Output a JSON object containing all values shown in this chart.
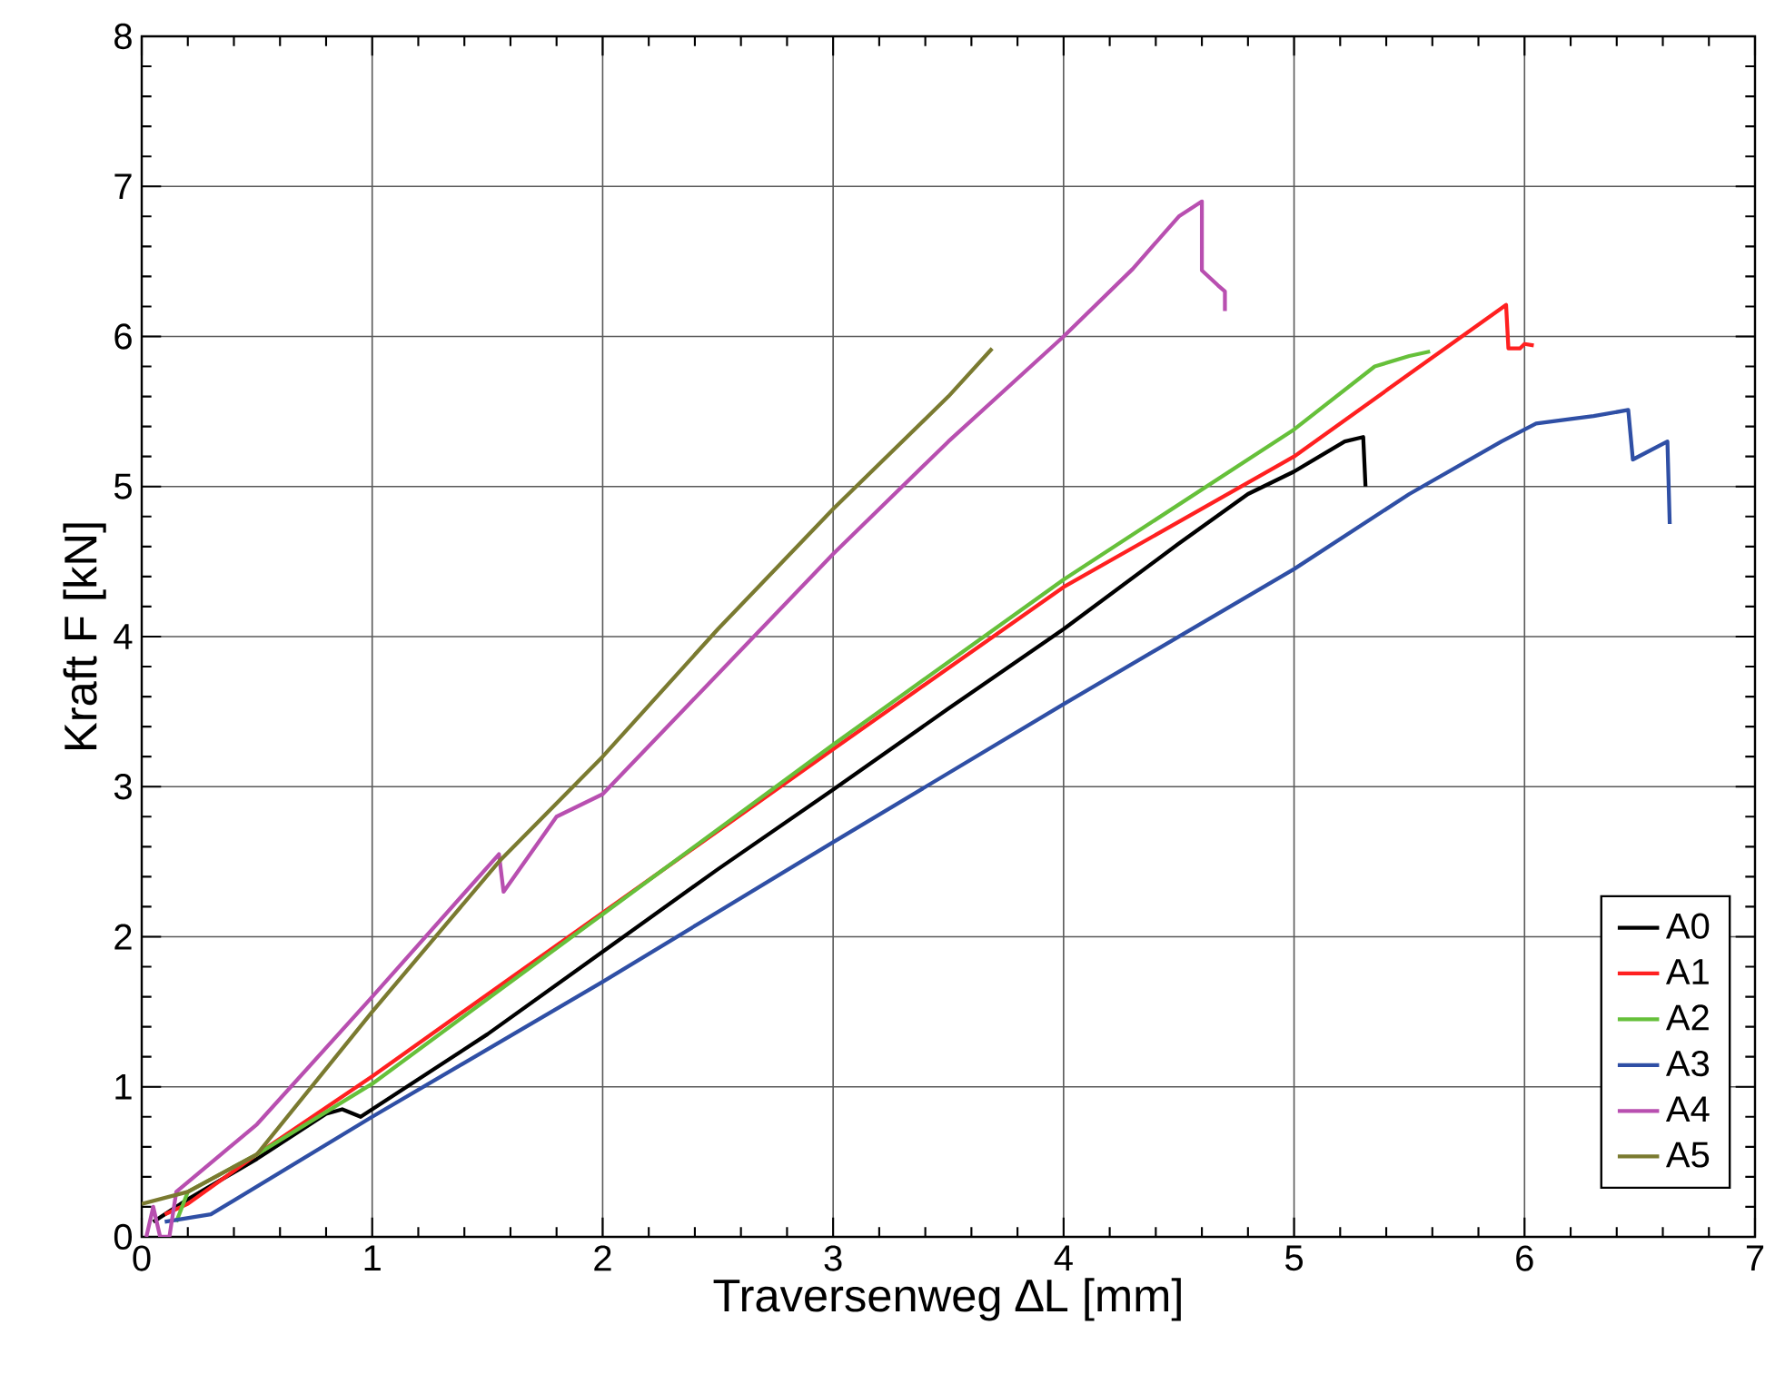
{
  "chart_data": {
    "type": "line",
    "xlabel": "Traversenweg ∆L [mm]",
    "ylabel": "Kraft F [kN]",
    "xlim": [
      0,
      7
    ],
    "ylim": [
      0,
      8
    ],
    "xticks": [
      0,
      1,
      2,
      3,
      4,
      5,
      6,
      7
    ],
    "yticks": [
      0,
      1,
      2,
      3,
      4,
      5,
      6,
      7,
      8
    ],
    "grid": true,
    "legend": "bottom right",
    "line_style": "solid",
    "marker": "none",
    "series": [
      {
        "name": "A0",
        "color": "#000000",
        "x": [
          0.05,
          0.2,
          0.5,
          0.8,
          0.87,
          0.95,
          1.0,
          1.5,
          2,
          2.5,
          3,
          3.5,
          4,
          4.5,
          4.8,
          5.0,
          5.22,
          5.3,
          5.31
        ],
        "values": [
          0.1,
          0.25,
          0.52,
          0.82,
          0.85,
          0.8,
          0.85,
          1.35,
          1.9,
          2.45,
          2.98,
          3.52,
          4.05,
          4.62,
          4.95,
          5.1,
          5.3,
          5.33,
          5.0
        ]
      },
      {
        "name": "A1",
        "color": "#ff2020",
        "x": [
          0.1,
          0.2,
          0.5,
          1,
          3,
          4,
          5,
          5.5,
          5.92,
          5.93,
          5.98,
          6.0,
          6.04
        ],
        "values": [
          0.15,
          0.22,
          0.55,
          1.07,
          3.25,
          4.33,
          5.2,
          5.75,
          6.21,
          5.92,
          5.92,
          5.95,
          5.94
        ]
      },
      {
        "name": "A2",
        "color": "#66c03a",
        "x": [
          0.15,
          0.2,
          0.5,
          1,
          2,
          3,
          4,
          5,
          5.35,
          5.5,
          5.59
        ],
        "values": [
          0.1,
          0.3,
          0.55,
          1.02,
          2.15,
          3.28,
          4.38,
          5.38,
          5.8,
          5.87,
          5.9
        ]
      },
      {
        "name": "A3",
        "color": "#2f4fa5",
        "x": [
          0.1,
          0.3,
          1,
          2,
          3,
          4,
          5,
          5.5,
          5.9,
          6.05,
          6.2,
          6.3,
          6.45,
          6.47,
          6.62,
          6.63
        ],
        "values": [
          0.1,
          0.15,
          0.8,
          1.7,
          2.63,
          3.55,
          4.45,
          4.95,
          5.3,
          5.42,
          5.45,
          5.47,
          5.51,
          5.18,
          5.3,
          4.75
        ]
      },
      {
        "name": "A4",
        "color": "#b84fb0",
        "x": [
          0.02,
          0.05,
          0.08,
          0.12,
          0.15,
          0.5,
          1,
          1.55,
          1.57,
          1.8,
          2,
          2.5,
          3,
          3.5,
          4,
          4.3,
          4.5,
          4.6,
          4.6,
          4.67,
          4.7,
          4.7
        ],
        "values": [
          0,
          0.2,
          0,
          0,
          0.3,
          0.75,
          1.6,
          2.55,
          2.3,
          2.8,
          2.95,
          3.75,
          4.55,
          5.3,
          6.0,
          6.45,
          6.8,
          6.9,
          6.44,
          6.34,
          6.3,
          6.17
        ]
      },
      {
        "name": "A5",
        "color": "#7a7a30",
        "x": [
          0,
          0.2,
          0.5,
          1,
          1.55,
          2,
          2.5,
          3,
          3.5,
          3.69
        ],
        "values": [
          0.22,
          0.3,
          0.55,
          1.5,
          2.5,
          3.2,
          4.05,
          4.85,
          5.6,
          5.92
        ]
      }
    ]
  }
}
